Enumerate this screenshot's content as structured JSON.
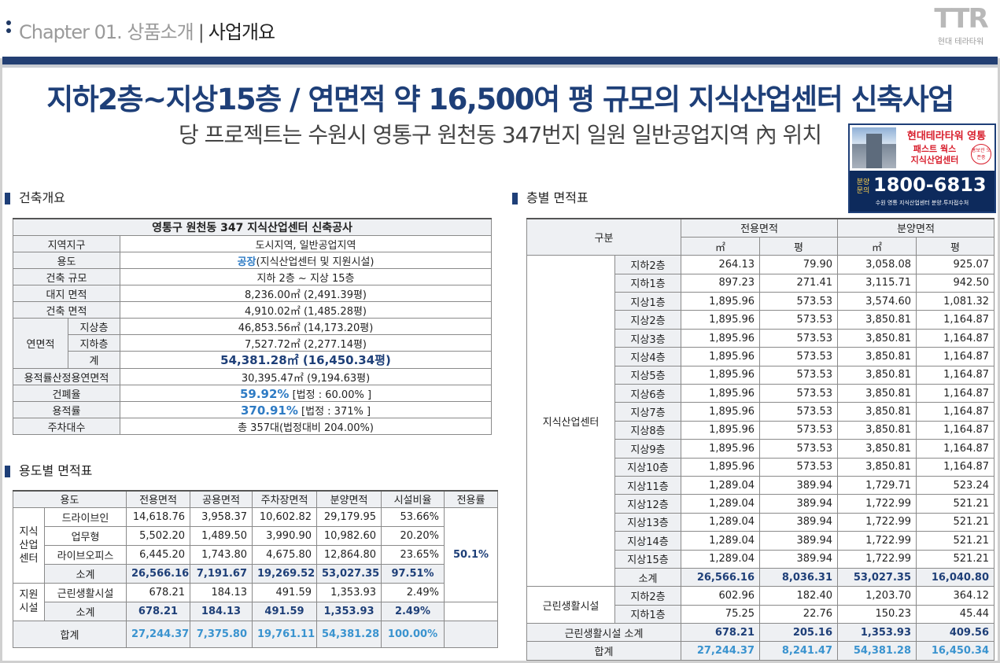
{
  "header": {
    "chapter": "Chapter 01. 상품소개",
    "divider": "|",
    "section": "사업개요",
    "logo_mark": "TTR",
    "logo_text": "현대 테라타워"
  },
  "title": "지하2층~지상15층 / 연면적 약 16,500여 평 규모의 지식산업센터 신축사업",
  "subtitle": "당 프로젝트는 수원시 영통구 원천동 347번지 일원 일반공업지역 內 위치",
  "ad": {
    "line1": "현대테라타워 영통",
    "line2": "패스트 웍스",
    "line3": "지식산업센터",
    "seal": "홍보관 오픈중",
    "label": "분양문의",
    "phone": "1800-6813",
    "note": "수원 영통 지식산업센터 분양.투자접수처"
  },
  "overview": {
    "heading": "건축개요",
    "caption": "영통구 원천동 347 지식산업센터 신축공사",
    "rows": [
      {
        "label": "지역지구",
        "value": "도시지역, 일반공업지역"
      },
      {
        "label": "용도",
        "value_hl": "공장",
        "value": "(지식산업센터 및 지원시설)"
      },
      {
        "label": "건축 규모",
        "value": "지하 2층 ~ 지상 15층"
      },
      {
        "label": "대지 면적",
        "value": "8,236.00㎡ (2,491.39평)"
      },
      {
        "label": "건축 면적",
        "value": "4,910.02㎡ (1,485.28평)"
      }
    ],
    "gfa": {
      "label": "연면적",
      "sub": [
        {
          "label": "지상층",
          "value": "46,853.56㎡ (14,173.20평)"
        },
        {
          "label": "지하층",
          "value": "7,527.72㎡ (2,277.14평)"
        },
        {
          "label": "계",
          "value": "54,381.28㎡ (16,450.34평)"
        }
      ]
    },
    "far_gfa": {
      "label": "용적률산정용연면적",
      "value": "30,395.47㎡ (9,194.63평)"
    },
    "bcr": {
      "label": "건폐율",
      "value": "59.92%",
      "legal": "[법정 : 60.00% ]"
    },
    "far": {
      "label": "용적률",
      "value": "370.91%",
      "legal": "[법정 : 371% ]"
    },
    "parking": {
      "label": "주차대수",
      "value": "총 357대(법정대비 204.00%)"
    }
  },
  "usage": {
    "heading": "용도별 면적표",
    "headers": [
      "용도",
      "전용면적",
      "공용면적",
      "주차장면적",
      "분양면적",
      "시설비율",
      "전용률"
    ],
    "group1": "지식\n산업\n센터",
    "group1_rows": [
      {
        "name": "드라이브인",
        "v": [
          "14,618.76",
          "3,958.37",
          "10,602.82",
          "29,179.95",
          "53.66%"
        ]
      },
      {
        "name": "업무형",
        "v": [
          "5,502.20",
          "1,489.50",
          "3,990.90",
          "10,982.60",
          "20.20%"
        ]
      },
      {
        "name": "라이브오피스",
        "v": [
          "6,445.20",
          "1,743.80",
          "4,675.80",
          "12,864.80",
          "23.65%"
        ]
      }
    ],
    "group1_sub": {
      "name": "소계",
      "v": [
        "26,566.16",
        "7,191.67",
        "19,269.52",
        "53,027.35",
        "97.51%"
      ]
    },
    "ratio": "50.1%",
    "group2": "지원\n시설",
    "group2_rows": [
      {
        "name": "근린생활시설",
        "v": [
          "678.21",
          "184.13",
          "491.59",
          "1,353.93",
          "2.49%"
        ]
      }
    ],
    "group2_sub": {
      "name": "소계",
      "v": [
        "678.21",
        "184.13",
        "491.59",
        "1,353.93",
        "2.49%"
      ]
    },
    "total": {
      "name": "합계",
      "v": [
        "27,244.37",
        "7,375.80",
        "19,761.11",
        "54,381.28",
        "100.00%"
      ]
    }
  },
  "floors": {
    "heading": "층별 면적표",
    "h_div": "구분",
    "h_excl": "전용면적",
    "h_sale": "분양면적",
    "u_m2": "㎡",
    "u_py": "평",
    "group1": "지식산업센터",
    "rows": [
      {
        "f": "지하2층",
        "v": [
          "264.13",
          "79.90",
          "3,058.08",
          "925.07"
        ]
      },
      {
        "f": "지하1층",
        "v": [
          "897.23",
          "271.41",
          "3,115.71",
          "942.50"
        ]
      },
      {
        "f": "지상1층",
        "v": [
          "1,895.96",
          "573.53",
          "3,574.60",
          "1,081.32"
        ]
      },
      {
        "f": "지상2층",
        "v": [
          "1,895.96",
          "573.53",
          "3,850.81",
          "1,164.87"
        ]
      },
      {
        "f": "지상3층",
        "v": [
          "1,895.96",
          "573.53",
          "3,850.81",
          "1,164.87"
        ]
      },
      {
        "f": "지상4층",
        "v": [
          "1,895.96",
          "573.53",
          "3,850.81",
          "1,164.87"
        ]
      },
      {
        "f": "지상5층",
        "v": [
          "1,895.96",
          "573.53",
          "3,850.81",
          "1,164.87"
        ]
      },
      {
        "f": "지상6층",
        "v": [
          "1,895.96",
          "573.53",
          "3,850.81",
          "1,164.87"
        ]
      },
      {
        "f": "지상7층",
        "v": [
          "1,895.96",
          "573.53",
          "3,850.81",
          "1,164.87"
        ]
      },
      {
        "f": "지상8층",
        "v": [
          "1,895.96",
          "573.53",
          "3,850.81",
          "1,164.87"
        ]
      },
      {
        "f": "지상9층",
        "v": [
          "1,895.96",
          "573.53",
          "3,850.81",
          "1,164.87"
        ]
      },
      {
        "f": "지상10층",
        "v": [
          "1,895.96",
          "573.53",
          "3,850.81",
          "1,164.87"
        ]
      },
      {
        "f": "지상11층",
        "v": [
          "1,289.04",
          "389.94",
          "1,729.71",
          "523.24"
        ]
      },
      {
        "f": "지상12층",
        "v": [
          "1,289.04",
          "389.94",
          "1,722.99",
          "521.21"
        ]
      },
      {
        "f": "지상13층",
        "v": [
          "1,289.04",
          "389.94",
          "1,722.99",
          "521.21"
        ]
      },
      {
        "f": "지상14층",
        "v": [
          "1,289.04",
          "389.94",
          "1,722.99",
          "521.21"
        ]
      },
      {
        "f": "지상15층",
        "v": [
          "1,289.04",
          "389.94",
          "1,722.99",
          "521.21"
        ]
      }
    ],
    "sub1": {
      "f": "소계",
      "v": [
        "26,566.16",
        "8,036.31",
        "53,027.35",
        "16,040.80"
      ]
    },
    "group2": "근린생활시설",
    "rows2": [
      {
        "f": "지하2층",
        "v": [
          "602.96",
          "182.40",
          "1,203.70",
          "364.12"
        ]
      },
      {
        "f": "지하1층",
        "v": [
          "75.25",
          "22.76",
          "150.23",
          "45.44"
        ]
      }
    ],
    "sub2": {
      "f": "근린생활시설 소계",
      "v": [
        "678.21",
        "205.16",
        "1,353.93",
        "409.56"
      ]
    },
    "total": {
      "f": "합계",
      "v": [
        "27,244.37",
        "8,241.47",
        "54,381.28",
        "16,450.34"
      ]
    }
  }
}
